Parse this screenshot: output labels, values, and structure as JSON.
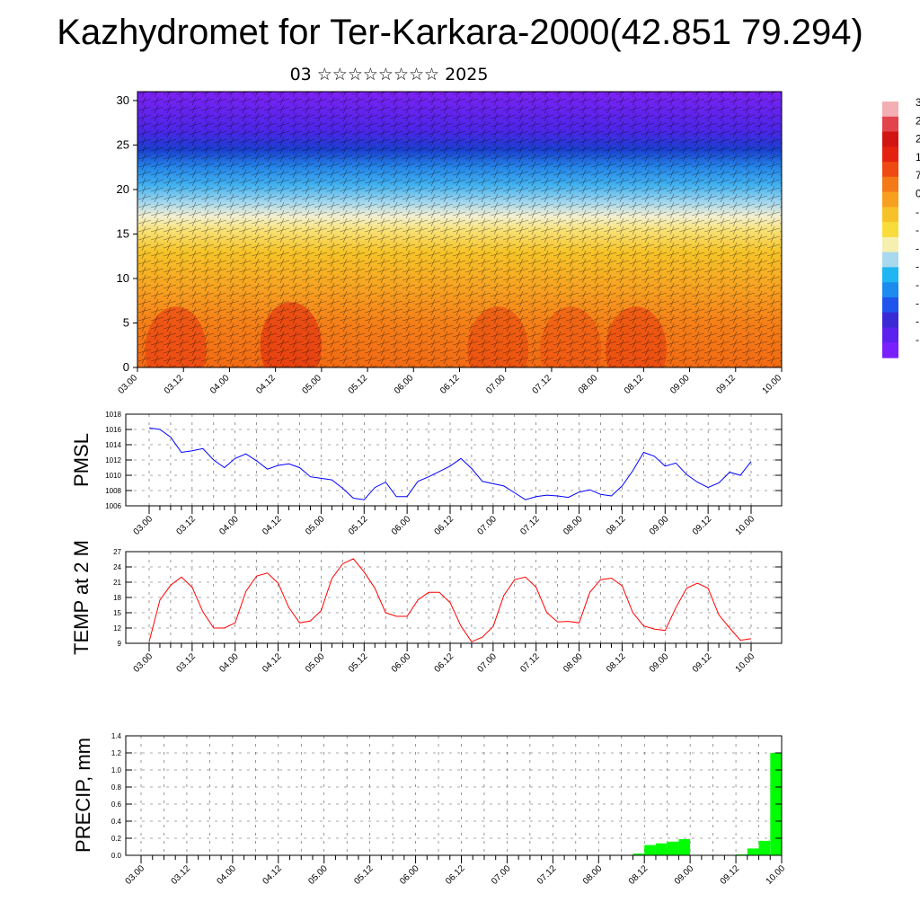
{
  "title": "Kazhydromet for Ter-Karkara-2000(42.851 79.294)",
  "subtitle": "03 ☆☆☆☆☆☆☆☆ 2025",
  "time_labels": [
    "03.00",
    "03.12",
    "04.00",
    "04.12",
    "05.00",
    "05.12",
    "06.00",
    "06.12",
    "07.00",
    "07.12",
    "08.00",
    "08.12",
    "09.00",
    "09.12",
    "10.00"
  ],
  "colorbar": {
    "colors": [
      "#7a1fff",
      "#5b22ef",
      "#3a2ad6",
      "#1f55ec",
      "#1c8bf0",
      "#1fb6f2",
      "#a9d9ee",
      "#f5efb0",
      "#f8dc3c",
      "#f7c229",
      "#f7a020",
      "#f47a18",
      "#ee4a12",
      "#e52210",
      "#d21512",
      "#e2444b",
      "#f2b0b4"
    ],
    "labels": [
      "3",
      "2",
      "2",
      "1",
      "7",
      "0",
      "-",
      "-",
      "-",
      "-",
      "-",
      "-",
      "-",
      "-"
    ]
  },
  "chart_data": [
    {
      "type": "heatmap",
      "name": "vertical-profile",
      "ylim": [
        0,
        31
      ],
      "yticks": [
        0,
        5,
        10,
        15,
        20,
        25,
        30
      ],
      "xlim": [
        0,
        168
      ],
      "x_tick_labels": [
        "03.00",
        "03.12",
        "04.00",
        "04.12",
        "05.00",
        "05.12",
        "06.00",
        "06.12",
        "07.00",
        "07.12",
        "08.00",
        "08.12",
        "09.00",
        "09.12",
        "10.00"
      ],
      "color_profile": [
        {
          "level": 0,
          "color": "#f26a14"
        },
        {
          "level": 5,
          "color": "#f47f18"
        },
        {
          "level": 9,
          "color": "#f7a322"
        },
        {
          "level": 13,
          "color": "#f6c428"
        },
        {
          "level": 15.5,
          "color": "#f8e27a"
        },
        {
          "level": 17,
          "color": "#f3efd0"
        },
        {
          "level": 18.5,
          "color": "#a6d8ee"
        },
        {
          "level": 20.5,
          "color": "#42b1ef"
        },
        {
          "level": 22.5,
          "color": "#2585e8"
        },
        {
          "level": 24.5,
          "color": "#1b3fcf"
        },
        {
          "level": 26.5,
          "color": "#4a26e6"
        },
        {
          "level": 31,
          "color": "#7d22f4"
        }
      ],
      "warm_cores": [
        {
          "x": 40,
          "y": 2.5,
          "color": "#e0200f"
        },
        {
          "x": 10,
          "y": 2,
          "color": "#e83512"
        },
        {
          "x": 94,
          "y": 2,
          "color": "#e8420f"
        },
        {
          "x": 130,
          "y": 2,
          "color": "#e8380f"
        },
        {
          "x": 113,
          "y": 2,
          "color": "#ec4e12"
        }
      ]
    },
    {
      "type": "line",
      "name": "PMSL",
      "ylabel": "PMSL",
      "ylim": [
        1006,
        1018
      ],
      "yticks": [
        1006,
        1008,
        1010,
        1012,
        1014,
        1016,
        1018
      ],
      "x_tick_labels": [
        "03.00",
        "03.12",
        "04.00",
        "04.12",
        "05.00",
        "05.12",
        "06.00",
        "06.12",
        "07.00",
        "07.12",
        "08.00",
        "08.12",
        "09.00",
        "09.12",
        "10.00"
      ],
      "series": [
        {
          "color": "#0000ff",
          "x": [
            0,
            3,
            6,
            9,
            12,
            15,
            18,
            21,
            24,
            27,
            30,
            33,
            36,
            39,
            42,
            45,
            48,
            51,
            54,
            57,
            60,
            63,
            66,
            69,
            72,
            75,
            78,
            81,
            84,
            87,
            90,
            93,
            96,
            99,
            102,
            105,
            108,
            111,
            114,
            117,
            120,
            123,
            126,
            129,
            132,
            135,
            138,
            141,
            144,
            147,
            150,
            153,
            156,
            159,
            162,
            165,
            168
          ],
          "y": [
            1016.2,
            1016.0,
            1015.0,
            1013.0,
            1013.2,
            1013.5,
            1012.0,
            1011.0,
            1012.2,
            1012.8,
            1011.9,
            1010.8,
            1011.3,
            1011.5,
            1011.0,
            1009.8,
            1009.6,
            1009.4,
            1008.3,
            1007.0,
            1006.8,
            1008.4,
            1009.1,
            1007.2,
            1007.2,
            1009.2,
            1009.8,
            1010.5,
            1011.2,
            1012.2,
            1010.9,
            1009.2,
            1008.9,
            1008.6,
            1007.7,
            1006.8,
            1007.2,
            1007.4,
            1007.3,
            1007.1,
            1007.8,
            1008.1,
            1007.5,
            1007.3,
            1008.6,
            1010.6,
            1013.0,
            1012.5,
            1011.2,
            1011.6,
            1010.1,
            1009.1,
            1008.4,
            1009.0,
            1010.4,
            1010.0,
            1011.8
          ]
        }
      ]
    },
    {
      "type": "line",
      "name": "TEMP at 2 M",
      "ylabel": "TEMP at 2 M",
      "ylim": [
        9,
        27
      ],
      "yticks": [
        9,
        12,
        15,
        18,
        21,
        24,
        27
      ],
      "x_tick_labels": [
        "03.00",
        "03.12",
        "04.00",
        "04.12",
        "05.00",
        "05.12",
        "06.00",
        "06.12",
        "07.00",
        "07.12",
        "08.00",
        "08.12",
        "09.00",
        "09.12",
        "10.00"
      ],
      "series": [
        {
          "color": "#ff0000",
          "x": [
            0,
            3,
            6,
            9,
            12,
            15,
            18,
            21,
            24,
            27,
            30,
            33,
            36,
            39,
            42,
            45,
            48,
            51,
            54,
            57,
            60,
            63,
            66,
            69,
            72,
            75,
            78,
            81,
            84,
            87,
            90,
            93,
            96,
            99,
            102,
            105,
            108,
            111,
            114,
            117,
            120,
            123,
            126,
            129,
            132,
            135,
            138,
            141,
            144,
            147,
            150,
            153,
            156,
            159,
            162,
            165,
            168
          ],
          "y": [
            9.3,
            17.5,
            20.4,
            22.0,
            20.0,
            15.2,
            12.0,
            12.0,
            13.0,
            19.2,
            22.2,
            22.8,
            20.8,
            16.0,
            13.0,
            13.4,
            15.4,
            21.7,
            24.6,
            25.6,
            23.0,
            19.8,
            15.0,
            14.3,
            14.3,
            17.5,
            19.0,
            19.0,
            17.0,
            12.4,
            9.3,
            10.2,
            12.3,
            18.4,
            21.5,
            22.0,
            20.0,
            15.0,
            13.2,
            13.3,
            13.0,
            19.0,
            21.5,
            21.8,
            20.3,
            15.0,
            12.4,
            11.8,
            11.5,
            16.0,
            19.8,
            20.8,
            19.8,
            14.6,
            12.0,
            9.6,
            9.9
          ]
        }
      ]
    },
    {
      "type": "bar",
      "name": "PRECIP, mm",
      "ylabel": "PRECIP, mm",
      "ylim": [
        0,
        1.4
      ],
      "yticks": [
        0.0,
        0.2,
        0.4,
        0.6,
        0.8,
        1.0,
        1.2,
        1.4
      ],
      "x_tick_labels": [
        "03.00",
        "03.12",
        "04.00",
        "04.12",
        "05.00",
        "05.12",
        "06.00",
        "06.12",
        "07.00",
        "07.12",
        "08.00",
        "08.12",
        "09.00",
        "09.12",
        "10.00"
      ],
      "bar_width_hours": 3,
      "series": [
        {
          "color": "#00ff00",
          "x": [
            132,
            135,
            138,
            141,
            144,
            159,
            162,
            165,
            168
          ],
          "y": [
            0.02,
            0.12,
            0.14,
            0.16,
            0.19,
            0.01,
            0.08,
            0.17,
            1.2
          ]
        }
      ]
    }
  ]
}
